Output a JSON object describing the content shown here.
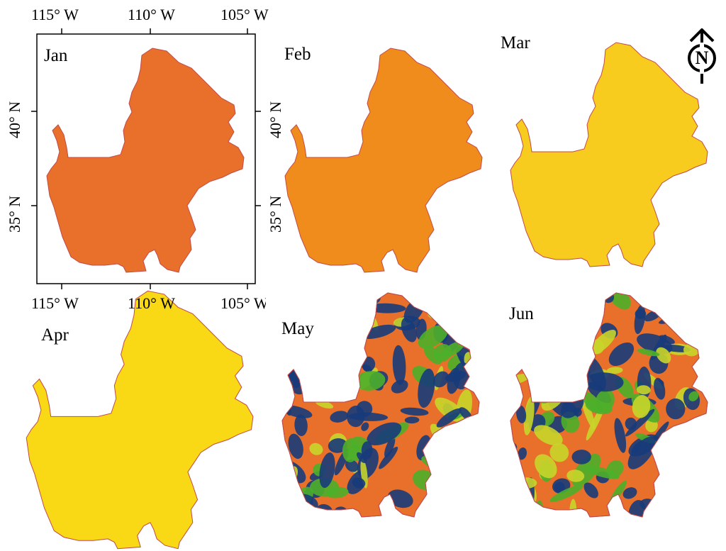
{
  "figure": {
    "panels": [
      {
        "id": "jan",
        "month": "Jan",
        "fill": "#e8702a",
        "pattern": "solid"
      },
      {
        "id": "feb",
        "month": "Feb",
        "fill": "#f08c1c",
        "pattern": "solid"
      },
      {
        "id": "mar",
        "month": "Mar",
        "fill": "#f7cc1e",
        "pattern": "solid"
      },
      {
        "id": "apr",
        "month": "Apr",
        "fill": "#f9d816",
        "pattern": "solid"
      },
      {
        "id": "may",
        "month": "May",
        "fill": "#e8702a",
        "pattern": "mottled"
      },
      {
        "id": "jun",
        "month": "Jun",
        "fill": "#e8702a",
        "pattern": "mottled"
      }
    ],
    "axes": {
      "lon_ticks": [
        "115° W",
        "110° W",
        "105° W"
      ],
      "lat_ticks": [
        "40° N",
        "35° N"
      ]
    },
    "north_arrow": {
      "letter": "N",
      "icon": "north-arrow-icon"
    },
    "colors": {
      "orange_dark": "#e8702a",
      "orange_light": "#f08c1c",
      "yellow": "#f7cc1e",
      "navy": "#173b7a",
      "green": "#4caf2a",
      "yellow_green": "#c8d52a"
    }
  }
}
